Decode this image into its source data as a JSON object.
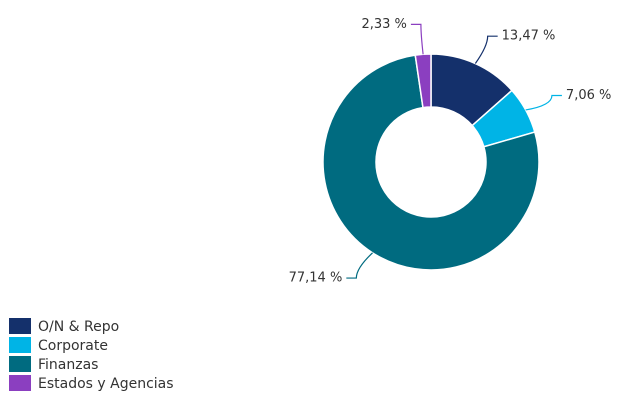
{
  "chart_data": {
    "type": "donut",
    "categories": [
      "O/N & Repo",
      "Corporate",
      "Finanzas",
      "Estados y Agencias"
    ],
    "values": [
      13.47,
      7.06,
      77.14,
      2.33
    ],
    "value_labels": [
      "13,47 %",
      "7,06 %",
      "77,14 %",
      "2,33 %"
    ],
    "colors": [
      "#14306b",
      "#00b4e6",
      "#006b80",
      "#8b3fc0"
    ],
    "legend": "bottom-left"
  }
}
